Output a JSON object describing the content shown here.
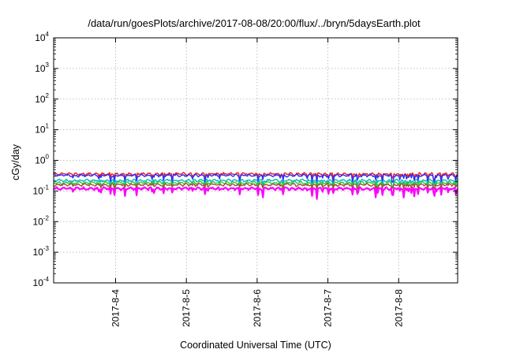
{
  "chart_data": {
    "type": "line",
    "title": "/data/run/goesPlots/archive/2017-08-08/20:00/flux/../bryn/5daysEarth.plot",
    "xlabel": "Coordinated Universal Time (UTC)",
    "ylabel": "cGy/day",
    "yscale": "log",
    "ylim": [
      0.0001,
      10000
    ],
    "xlim": [
      "2017-08-03T03:00",
      "2017-08-08T20:00"
    ],
    "y_ticks": [
      {
        "base": "10",
        "exp": "-4",
        "value": 0.0001
      },
      {
        "base": "10",
        "exp": "-3",
        "value": 0.001
      },
      {
        "base": "10",
        "exp": "-2",
        "value": 0.01
      },
      {
        "base": "10",
        "exp": "-1",
        "value": 0.1
      },
      {
        "base": "10",
        "exp": "0",
        "value": 1
      },
      {
        "base": "10",
        "exp": "1",
        "value": 10
      },
      {
        "base": "10",
        "exp": "2",
        "value": 100
      },
      {
        "base": "10",
        "exp": "3",
        "value": 1000
      },
      {
        "base": "10",
        "exp": "4",
        "value": 10000
      }
    ],
    "x_ticks": [
      "2017-8-4",
      "2017-8-5",
      "2017-8-6",
      "2017-8-7",
      "2017-8-8"
    ],
    "grid": true,
    "legend": "none",
    "series": [
      {
        "color": "#e41a1c",
        "level": 0.36,
        "dip": 0.68
      },
      {
        "color": "#2d2dff",
        "level": 0.32,
        "dip": 0.66
      },
      {
        "color": "#00b8b8",
        "level": 0.22,
        "dip": 0.68
      },
      {
        "color": "#2ecc40",
        "level": 0.185,
        "dip": 0.72
      },
      {
        "color": "#a0522d",
        "level": 0.16,
        "dip": 0.75
      },
      {
        "color": "#ff00ff",
        "level": 0.12,
        "dip": 0.6
      }
    ]
  }
}
